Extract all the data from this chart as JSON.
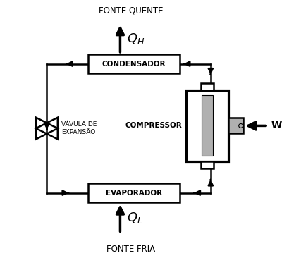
{
  "bg_color": "#ffffff",
  "line_color": "#000000",
  "box_color": "#ffffff",
  "box_edge": "#000000",
  "shaft_fill": "#b0b0b0",
  "fonte_quente": "FONTE QUENTE",
  "fonte_fria": "FONTE FRIA",
  "QH_label": "$Q_H$",
  "QL_label": "$Q_L$",
  "W_label": "W",
  "condensador_label": "CONDENSADOR",
  "evaporador_label": "EVAPORADOR",
  "compressor_label": "COMPRESSOR",
  "valvula_label": "VÁVULA DE\nEXPANSÃO",
  "lw": 1.8,
  "arrow_lw": 2.0,
  "big_arrow_lw": 2.5,
  "fig_w": 4.0,
  "fig_h": 3.66,
  "dpi": 100
}
